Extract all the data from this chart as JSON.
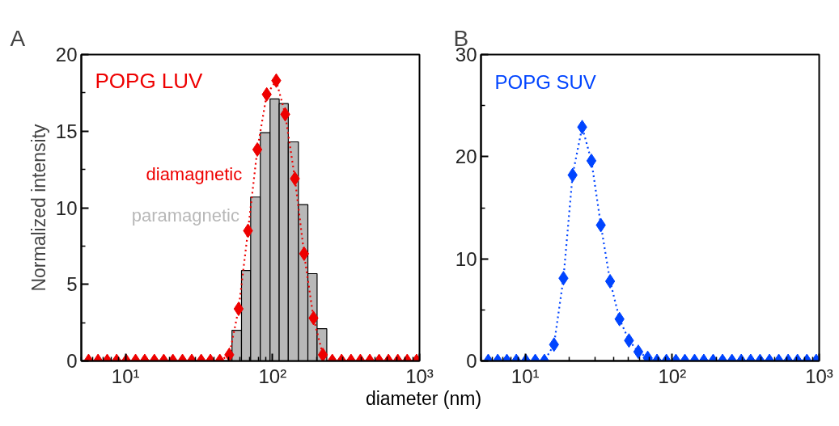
{
  "chart_data": [
    {
      "type": "line",
      "title": "A",
      "xlabel": "diameter (nm)",
      "ylabel": "Normalized intensity",
      "log": "x",
      "marker": "diamond",
      "line_style": "dotted",
      "annotations": [
        "POPG LUV"
      ],
      "xlim": [
        5,
        1000
      ],
      "xticks": [
        {
          "value": 10,
          "label": "10¹"
        },
        {
          "value": 100,
          "label": "10²"
        },
        {
          "value": 1000,
          "label": "10³"
        }
      ],
      "ylim": [
        0,
        20
      ],
      "yticks": [
        0,
        5,
        10,
        15,
        20
      ],
      "x": [
        5.6,
        6.5,
        7.5,
        8.7,
        10.1,
        11.7,
        13.5,
        15.7,
        18.2,
        21,
        24.4,
        28.2,
        32.7,
        37.8,
        43.8,
        50.8,
        58.8,
        68.1,
        78.8,
        91.3,
        106,
        122,
        142,
        164,
        190,
        220,
        255,
        295,
        342,
        396,
        459,
        531,
        615,
        712,
        825,
        955
      ],
      "series": [
        {
          "name": "paramagnetic",
          "type": "histogram",
          "color": "#b8b8b8",
          "bins": [
            53,
            61.5,
            71,
            82.6,
            96.2,
            111,
            128,
            150,
            174,
            201,
            234
          ],
          "values": [
            2.0,
            5.9,
            10.7,
            14.9,
            17.1,
            16.8,
            14.3,
            10.2,
            5.7,
            2.1
          ]
        },
        {
          "name": "diamagnetic",
          "color": "#ee0000",
          "values": [
            0,
            0,
            0,
            0,
            0,
            0,
            0,
            0,
            0,
            0,
            0,
            0,
            0,
            0,
            0,
            0.4,
            3.4,
            8.5,
            13.8,
            17.4,
            18.3,
            16.1,
            11.9,
            7.0,
            2.8,
            0.4,
            0,
            0,
            0,
            0,
            0,
            0,
            0,
            0,
            0,
            0
          ]
        }
      ]
    },
    {
      "type": "line",
      "title": "B",
      "log": "x",
      "marker": "diamond",
      "line_style": "dotted",
      "xlim": [
        5,
        1000
      ],
      "xticks": [
        {
          "value": 10,
          "label": "10¹"
        },
        {
          "value": 100,
          "label": "10²"
        },
        {
          "value": 1000,
          "label": "10³"
        }
      ],
      "ylim": [
        0,
        30
      ],
      "yticks": [
        0,
        10,
        20,
        30
      ],
      "x": [
        5.6,
        6.5,
        7.5,
        8.7,
        10.1,
        11.7,
        13.5,
        15.7,
        18.2,
        21,
        24.4,
        28.2,
        32.7,
        37.8,
        43.8,
        50.8,
        58.8,
        68.1,
        78.8,
        91.3,
        106,
        122,
        142,
        164,
        190,
        220,
        255,
        295,
        342,
        396,
        459,
        531,
        615,
        712,
        825,
        955
      ],
      "series": [
        {
          "name": "POPG SUV",
          "color": "#0044ff",
          "values": [
            0,
            0,
            0,
            0,
            0,
            0,
            0,
            1.6,
            8.1,
            18.2,
            22.9,
            19.6,
            13.3,
            7.8,
            4.1,
            2.0,
            0.9,
            0.3,
            0,
            0,
            0,
            0,
            0,
            0,
            0,
            0,
            0,
            0,
            0,
            0,
            0,
            0,
            0,
            0,
            0,
            0
          ]
        }
      ]
    }
  ]
}
